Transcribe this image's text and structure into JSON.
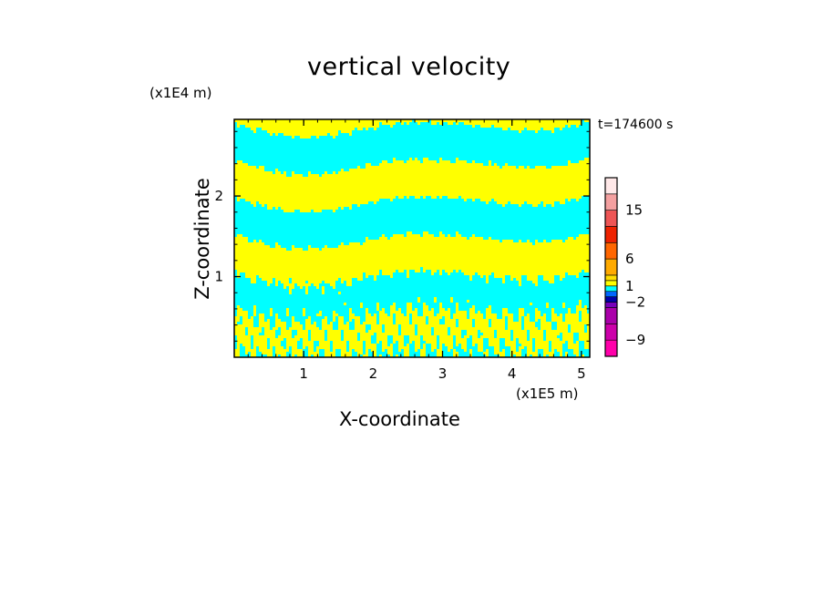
{
  "chart_data": {
    "type": "heatmap",
    "title": "vertical velocity",
    "xlabel": "X-coordinate",
    "ylabel": "Z-coordinate",
    "x_unit": "(x1E5 m)",
    "y_unit": "(x1E4 m)",
    "time_label": "t=174600 s",
    "xlim": [
      0,
      5.12
    ],
    "ylim": [
      0,
      2.95
    ],
    "x_ticks": [
      "1",
      "2",
      "3",
      "4",
      "5"
    ],
    "y_ticks": [
      "1",
      "2"
    ],
    "field_colors": {
      "positive": "#ffff00",
      "negative": "#00ffff"
    },
    "colorbar": {
      "levels": [
        -12,
        -9,
        -6,
        -3,
        -2,
        -1,
        0,
        1,
        2,
        3,
        6,
        9,
        12,
        15,
        18,
        21
      ],
      "tick_labels": [
        "15",
        "6",
        "1",
        "-2",
        "-9"
      ],
      "tick_values": [
        15,
        6,
        1,
        -2,
        -9
      ],
      "colors": [
        "#ff00aa",
        "#cc00aa",
        "#aa00aa",
        "#7700bb",
        "#0000aa",
        "#0066ff",
        "#00ffff",
        "#ffff00",
        "#ffdd00",
        "#ffaa00",
        "#ff6600",
        "#ee2200",
        "#ee5555",
        "#f4a0a0",
        "#ffe8e8"
      ]
    }
  }
}
